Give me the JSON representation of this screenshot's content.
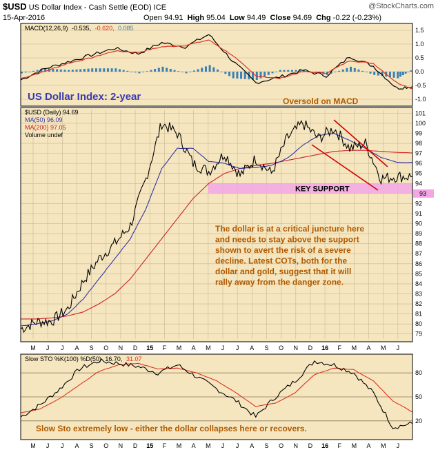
{
  "header": {
    "symbol": "$USD",
    "name": "US Dollar Index - Cash Settle (EOD) ICE",
    "brand": "@StockCharts.com",
    "date": "15-Apr-2016",
    "open_label": "Open",
    "open": "94.91",
    "high_label": "High",
    "high": "95.04",
    "low_label": "Low",
    "low": "94.49",
    "close_label": "Close",
    "close": "94.69",
    "chg_label": "Chg",
    "chg": "-0.22 (-0.23%)"
  },
  "colors": {
    "panel_bg": "#f5e6bf",
    "price": "#000000",
    "ma50": "#3333aa",
    "ma200": "#cc2222",
    "macd_line": "#000000",
    "signal_line": "#dd3322",
    "histogram": "#3a7fb5",
    "support_zone": "#f3a6e6",
    "trendline": "#cc0000",
    "annotation_blue": "#3a3ab0",
    "annotation_brown": "#b05a00",
    "last_price_tag": "#f3a6e6"
  },
  "macd_panel": {
    "legend_indicator": "MACD(12,26,9)",
    "legend_macd": "-0.535,",
    "legend_signal": "-0.620,",
    "legend_hist": "0.085",
    "annotation": "Oversold on MACD"
  },
  "price_panel": {
    "legend_price": "$USD (Daily) 94.69",
    "legend_ma50": "MA(50) 96.09",
    "legend_ma200": "MA(200) 97.05",
    "legend_volume": "Volume undef",
    "title_annotation": "US Dollar Index: 2-year",
    "support_label": "KEY SUPPORT",
    "last_price_tag": "93",
    "commentary": [
      "The dollar is at a critical juncture here",
      "and needs to stay above the support",
      "shown to avert the risk of a severe",
      "decline. Latest COTs, both for the",
      "dollar and gold, suggest that it will",
      "rally away from the danger zone."
    ]
  },
  "sto_panel": {
    "legend": "Slow STO %K(100) %D(50)",
    "legend_k": "16.70,",
    "legend_d": "31.07",
    "annotation": "Slow Sto extremely low - either the dollar collapses here or recovers."
  },
  "chart_data": [
    {
      "type": "line",
      "name": "MACD(12,26,9)",
      "y_ticks": [
        "1.5",
        "1.0",
        "0.5",
        "0.0",
        "-0.5",
        "-1.0"
      ],
      "ylim": [
        -1.15,
        1.65
      ],
      "x": [
        0,
        6,
        12,
        18,
        24,
        30,
        36,
        42,
        48,
        54,
        60,
        66,
        72,
        78,
        84,
        90,
        96,
        100
      ],
      "series": [
        {
          "values": [
            -0.3,
            0.1,
            0.35,
            0.6,
            0.85,
            0.65,
            1.05,
            0.9,
            1.35,
            0.4,
            -0.4,
            -0.2,
            0.05,
            -0.15,
            0.55,
            0.2,
            -0.6,
            -0.535
          ]
        },
        {
          "values": [
            -0.25,
            0.0,
            0.3,
            0.5,
            0.75,
            0.7,
            0.9,
            0.95,
            1.15,
            0.6,
            -0.15,
            -0.25,
            0.0,
            -0.05,
            0.4,
            0.3,
            -0.4,
            -0.62
          ]
        }
      ],
      "histogram_last": 0.085
    },
    {
      "type": "line",
      "name": "$USD (Daily)",
      "x_ticks": [
        "M",
        "J",
        "J",
        "A",
        "S",
        "O",
        "N",
        "D",
        "15",
        "F",
        "M",
        "A",
        "M",
        "J",
        "J",
        "A",
        "S",
        "O",
        "N",
        "D",
        "16",
        "F",
        "M",
        "A",
        "M",
        "J"
      ],
      "y_ticks": [
        "101",
        "100",
        "99",
        "98",
        "97",
        "96",
        "95",
        "94",
        "93",
        "92",
        "91",
        "90",
        "89",
        "88",
        "87",
        "86",
        "85",
        "84",
        "83",
        "82",
        "81",
        "80",
        "79"
      ],
      "ylim": [
        78.5,
        101.3
      ],
      "x": [
        0,
        4,
        8,
        12,
        16,
        20,
        24,
        28,
        32,
        36,
        40,
        44,
        48,
        52,
        56,
        60,
        64,
        68,
        72,
        76,
        80,
        84,
        88,
        92,
        96,
        100
      ],
      "series": [
        {
          "name": "close",
          "values": [
            79.5,
            80.2,
            80.3,
            81.5,
            84.3,
            86.5,
            88.0,
            89.8,
            94.5,
            100.0,
            99.0,
            96.0,
            95.2,
            97.0,
            94.8,
            96.5,
            95.0,
            98.5,
            100.0,
            98.5,
            99.5,
            97.5,
            98.0,
            94.5,
            94.7,
            94.69
          ]
        },
        {
          "name": "MA(50)",
          "values": [
            79.8,
            80.0,
            80.3,
            81.0,
            82.5,
            84.5,
            86.5,
            88.5,
            91.5,
            95.5,
            97.5,
            97.5,
            96.2,
            96.0,
            95.5,
            95.6,
            95.8,
            96.5,
            97.8,
            98.8,
            99.0,
            98.3,
            97.5,
            96.6,
            96.1,
            96.09
          ]
        },
        {
          "name": "MA(200)",
          "values": [
            80.5,
            80.5,
            80.6,
            80.8,
            81.2,
            82.0,
            83.0,
            84.5,
            86.5,
            88.5,
            90.5,
            92.5,
            94.0,
            95.0,
            95.5,
            95.8,
            96.0,
            96.3,
            96.6,
            96.9,
            97.2,
            97.3,
            97.3,
            97.2,
            97.1,
            97.05
          ]
        }
      ],
      "support_zone": [
        93.0,
        94.0
      ]
    },
    {
      "type": "line",
      "name": "Slow STO %K(100) %D(50)",
      "y_ticks": [
        "80",
        "50",
        "20"
      ],
      "ylim": [
        0,
        100
      ],
      "x": [
        0,
        5,
        10,
        15,
        20,
        25,
        30,
        35,
        40,
        45,
        50,
        55,
        60,
        65,
        70,
        75,
        80,
        85,
        90,
        95,
        100
      ],
      "series": [
        {
          "name": "%K",
          "values": [
            25,
            40,
            60,
            85,
            95,
            92,
            88,
            80,
            90,
            75,
            60,
            45,
            25,
            50,
            70,
            95,
            90,
            80,
            55,
            12,
            16.7
          ]
        },
        {
          "name": "%D",
          "values": [
            30,
            35,
            48,
            65,
            82,
            90,
            92,
            85,
            86,
            80,
            70,
            55,
            38,
            42,
            55,
            78,
            86,
            84,
            70,
            45,
            31.07
          ]
        }
      ]
    }
  ]
}
